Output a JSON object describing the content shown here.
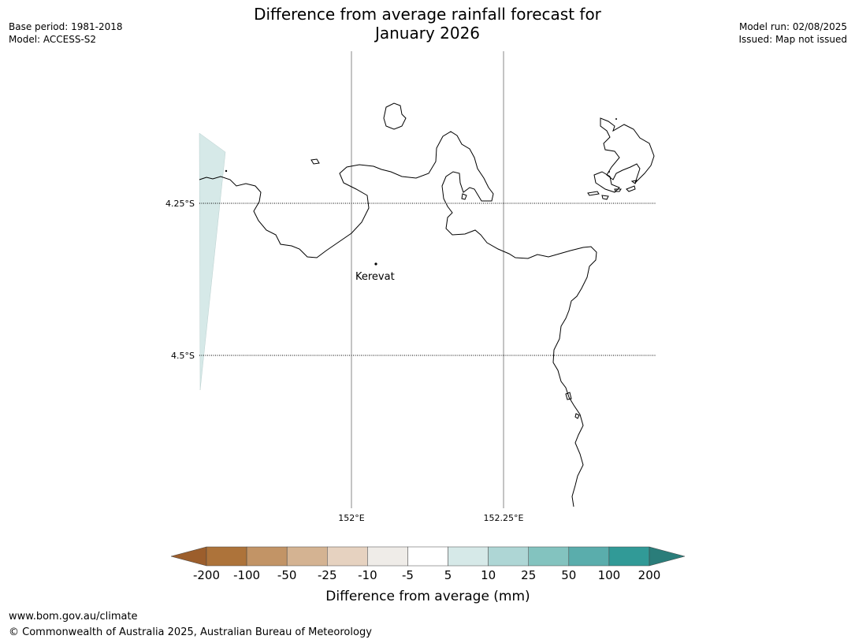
{
  "header": {
    "title_line1": "Difference from average rainfall forecast for",
    "title_line2": "January 2026",
    "base_period": "Base period: 1981-2018",
    "model": "Model: ACCESS-S2",
    "model_run": "Model run: 02/08/2025",
    "issued": "Issued: Map not issued"
  },
  "map": {
    "lat_labels": [
      "4.25°S",
      "4.5°S"
    ],
    "lon_labels": [
      "152°E",
      "152.25°E"
    ],
    "place_label": "Kerevat"
  },
  "legend": {
    "tick_labels": [
      "-200",
      "-100",
      "-50",
      "-25",
      "-10",
      "-5",
      "5",
      "10",
      "25",
      "50",
      "100",
      "200"
    ],
    "colors": [
      "#9c5e2c",
      "#ad733a",
      "#c29466",
      "#d4b392",
      "#e6d2c0",
      "#efece8",
      "#ffffff",
      "#d6e9e8",
      "#aed6d5",
      "#83c3bf",
      "#5aadac",
      "#319a97",
      "#2a7d7a"
    ],
    "title": "Difference from average (mm)"
  },
  "footer": {
    "url": "www.bom.gov.au/climate",
    "copyright": "© Commonwealth of Australia 2025, Australian Bureau of Meteorology"
  }
}
